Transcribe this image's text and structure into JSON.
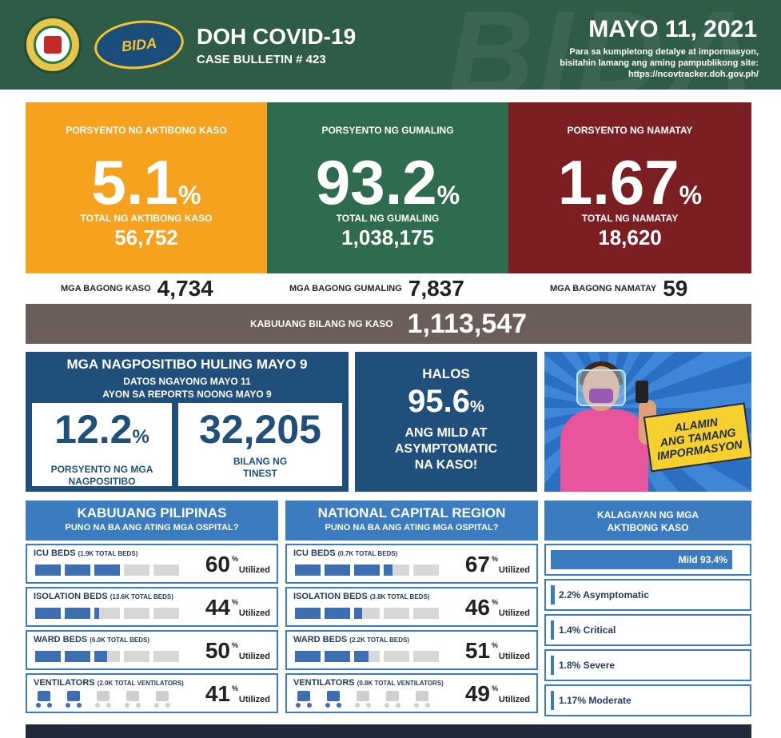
{
  "header": {
    "title": "DOH COVID-19",
    "bulletin": "CASE BULLETIN # 423",
    "date": "MAYO 11, 2021",
    "note_line1": "Para sa kumpletong detalye at impormasyon,",
    "note_line2": "bisitahin lamang ang aming pampublikong site:",
    "note_url": "https://ncovtracker.doh.gov.ph/",
    "logo_text": "BIDA"
  },
  "active": {
    "label": "PORSYENTO NG AKTIBONG KASO",
    "pct": "5.1",
    "total_label": "TOTAL NG AKTIBONG KASO",
    "total": "56,752"
  },
  "recovered": {
    "label": "PORSYENTO NG GUMALING",
    "pct": "93.2",
    "total_label": "TOTAL NG GUMALING",
    "total": "1,038,175"
  },
  "deaths": {
    "label": "PORSYENTO NG NAMATAY",
    "pct": "1.67",
    "total_label": "TOTAL NG NAMATAY",
    "total": "18,620"
  },
  "pct_sign": "%",
  "new": {
    "cases_label": "MGA BAGONG KASO",
    "cases": "4,734",
    "recovered_label": "MGA BAGONG GUMALING",
    "recovered": "7,837",
    "deaths_label": "MGA BAGONG NAMATAY",
    "deaths": "59"
  },
  "total_cases": {
    "label": "KABUUANG BILANG NG KASO",
    "value": "1,113,547"
  },
  "positivity": {
    "title": "MGA NAGPOSITIBO HULING MAYO 9",
    "sub1": "DATOS NGAYONG MAYO 11",
    "sub2": "AYON SA REPORTS NOONG MAYO 9",
    "rate": "12.2",
    "rate_cap1": "PORSYENTO NG MGA",
    "rate_cap2": "NAGPOSITIBO",
    "tested": "32,205",
    "tested_cap1": "BILANG NG",
    "tested_cap2": "TINEST"
  },
  "mild": {
    "line1": "HALOS",
    "pct": "95.6",
    "line2": "ANG MILD AT",
    "line3": "ASYMPTOMATIC",
    "line4": "NA KASO!"
  },
  "illustration": {
    "banner1": "ALAMIN",
    "banner2": "ANG TAMANG",
    "banner3": "IMPORMASYON"
  },
  "utilized_label": "Utilized",
  "hospital_ph": {
    "title": "KABUUANG PILIPINAS",
    "subtitle": "PUNO NA BA ANG ATING MGA OSPITAL?",
    "rows": [
      {
        "name": "ICU BEDS",
        "detail": "(1.9K TOTAL BEDS)",
        "pct": "60",
        "utilization": 0.6
      },
      {
        "name": "ISOLATION BEDS",
        "detail": "(13.6K TOTAL BEDS)",
        "pct": "44",
        "utilization": 0.44
      },
      {
        "name": "WARD BEDS",
        "detail": "(6.0K TOTAL BEDS)",
        "pct": "50",
        "utilization": 0.5
      },
      {
        "name": "VENTILATORS",
        "detail": "(2.0K TOTAL VENTILATORS)",
        "pct": "41",
        "utilization": 0.41
      }
    ]
  },
  "hospital_ncr": {
    "title": "NATIONAL CAPITAL REGION",
    "subtitle": "PUNO NA BA ANG ATING MGA OSPITAL?",
    "rows": [
      {
        "name": "ICU BEDS",
        "detail": "(0.7K TOTAL BEDS)",
        "pct": "67",
        "utilization": 0.67
      },
      {
        "name": "ISOLATION BEDS",
        "detail": "(3.8K TOTAL BEDS)",
        "pct": "46",
        "utilization": 0.46
      },
      {
        "name": "WARD BEDS",
        "detail": "(2.2K TOTAL BEDS)",
        "pct": "51",
        "utilization": 0.51
      },
      {
        "name": "VENTILATORS",
        "detail": "(0.8K TOTAL VENTILATORS)",
        "pct": "49",
        "utilization": 0.49
      }
    ]
  },
  "status": {
    "title1": "KALAGAYAN NG MGA",
    "title2": "AKTIBONG KASO",
    "rows": [
      {
        "label": "Mild 93.4%",
        "share": 0.934
      },
      {
        "label": "2.2% Asymptomatic",
        "share": 0.022
      },
      {
        "label": "1.4% Critical",
        "share": 0.014
      },
      {
        "label": "1.8% Severe",
        "share": 0.018
      },
      {
        "label": "1.17% Moderate",
        "share": 0.0117
      }
    ]
  },
  "colors": {
    "header": "#2f5c46",
    "active": "#f6a21e",
    "recovered": "#2f6b4e",
    "deaths": "#7b1f23",
    "total_bar": "#6b5e5a",
    "navy": "#1f4f7a",
    "blue": "#3b7bbf",
    "bar_fill": "#3d6eb0",
    "bar_empty": "#d7d7d7"
  }
}
